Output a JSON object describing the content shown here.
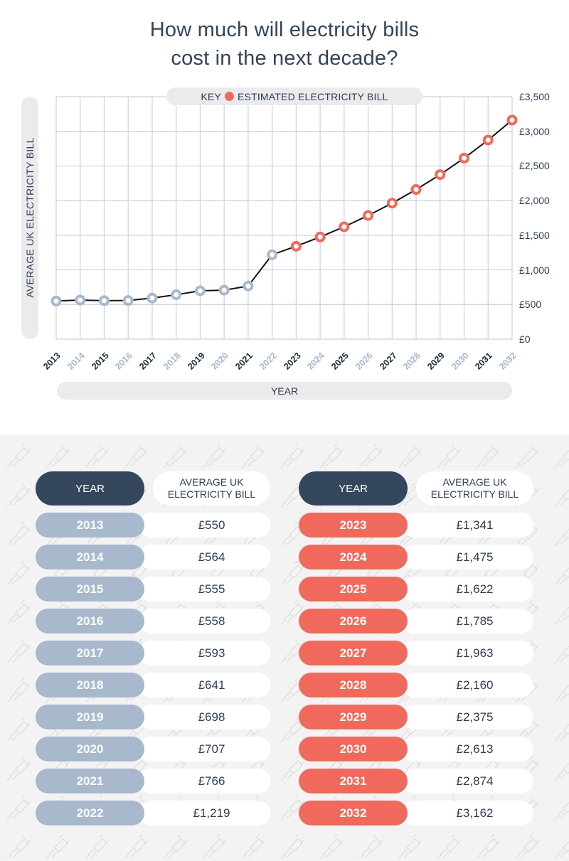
{
  "title": {
    "line1": "How much will electricity bills",
    "line2": "cost in the next decade?"
  },
  "colors": {
    "historical": "#a8b8cd",
    "estimated": "#ef6a5c",
    "header": "#34475c",
    "text": "#2f3e52",
    "grid": "#c9d2de"
  },
  "chart_data": {
    "type": "line",
    "title": "How much will electricity bills cost in the next decade?",
    "xlabel": "YEAR",
    "ylabel": "AVERAGE UK ELECTRICITY BILL",
    "legend": {
      "label": "ESTIMATED ELECTRICITY BILL",
      "prefix": "KEY",
      "placement": "top-center"
    },
    "x": [
      "2013",
      "2014",
      "2015",
      "2016",
      "2017",
      "2018",
      "2019",
      "2020",
      "2021",
      "2022",
      "2023",
      "2024",
      "2025",
      "2026",
      "2027",
      "2028",
      "2029",
      "2030",
      "2031",
      "2032"
    ],
    "series": [
      {
        "name": "Average UK electricity bill",
        "values": [
          550,
          564,
          555,
          558,
          593,
          641,
          698,
          707,
          766,
          1219,
          1341,
          1475,
          1622,
          1785,
          1963,
          2160,
          2375,
          2613,
          2874,
          3162
        ],
        "estimated_from_index": 10
      }
    ],
    "ylim": [
      0,
      3500
    ],
    "yticks": [
      0,
      500,
      1000,
      1500,
      2000,
      2500,
      3000,
      3500
    ],
    "ytick_labels": [
      "£0",
      "£500",
      "£1,000",
      "£1,500",
      "£2,000",
      "£2,500",
      "£3,000",
      "£3,500"
    ],
    "y_axis_side": "right",
    "grid": true
  },
  "tables": [
    {
      "header_year": "YEAR",
      "header_bill": "AVERAGE UK ELECTRICITY BILL",
      "header_bill_line1": "AVERAGE UK",
      "header_bill_line2": "ELECTRICITY BILL",
      "kind": "historical",
      "rows": [
        {
          "year": "2013",
          "bill": "£550"
        },
        {
          "year": "2014",
          "bill": "£564"
        },
        {
          "year": "2015",
          "bill": "£555"
        },
        {
          "year": "2016",
          "bill": "£558"
        },
        {
          "year": "2017",
          "bill": "£593"
        },
        {
          "year": "2018",
          "bill": "£641"
        },
        {
          "year": "2019",
          "bill": "£698"
        },
        {
          "year": "2020",
          "bill": "£707"
        },
        {
          "year": "2021",
          "bill": "£766"
        },
        {
          "year": "2022",
          "bill": "£1,219"
        }
      ]
    },
    {
      "header_year": "YEAR",
      "header_bill": "AVERAGE UK ELECTRICITY BILL",
      "header_bill_line1": "AVERAGE UK",
      "header_bill_line2": "ELECTRICITY BILL",
      "kind": "estimated",
      "rows": [
        {
          "year": "2023",
          "bill": "£1,341"
        },
        {
          "year": "2024",
          "bill": "£1,475"
        },
        {
          "year": "2025",
          "bill": "£1,622"
        },
        {
          "year": "2026",
          "bill": "£1,785"
        },
        {
          "year": "2027",
          "bill": "£1,963"
        },
        {
          "year": "2028",
          "bill": "£2,160"
        },
        {
          "year": "2029",
          "bill": "£2,375"
        },
        {
          "year": "2030",
          "bill": "£2,613"
        },
        {
          "year": "2031",
          "bill": "£2,874"
        },
        {
          "year": "2032",
          "bill": "£3,162"
        }
      ]
    }
  ]
}
